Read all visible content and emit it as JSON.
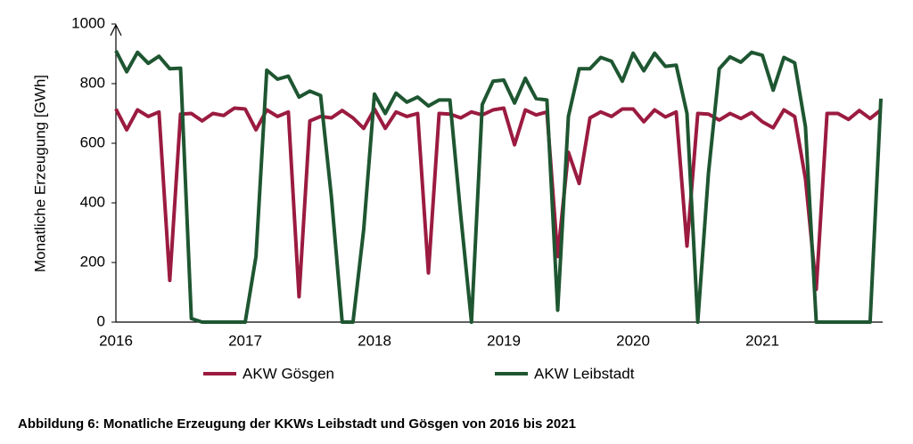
{
  "chart_data": {
    "type": "line",
    "caption": "Abbildung 6: Monatliche Erzeugung der KKWs Leibstadt und Gösgen von 2016 bis 2021",
    "y_label": "Monatliche Erzeugung [GWh]",
    "categories": [
      "2016",
      null,
      null,
      null,
      null,
      null,
      null,
      null,
      null,
      null,
      null,
      null,
      "2017",
      null,
      null,
      null,
      null,
      null,
      null,
      null,
      null,
      null,
      null,
      null,
      "2018",
      null,
      null,
      null,
      null,
      null,
      null,
      null,
      null,
      null,
      null,
      null,
      "2019",
      null,
      null,
      null,
      null,
      null,
      null,
      null,
      null,
      null,
      null,
      null,
      "2020",
      null,
      null,
      null,
      null,
      null,
      null,
      null,
      null,
      null,
      null,
      null,
      "2021",
      null,
      null,
      null,
      null,
      null,
      null,
      null,
      null,
      null,
      null,
      null
    ],
    "series": [
      {
        "name": "AKW Gösgen",
        "color": "#9b1b40",
        "values": [
          715,
          645,
          712,
          690,
          705,
          140,
          698,
          700,
          675,
          700,
          693,
          718,
          715,
          645,
          712,
          690,
          705,
          85,
          675,
          690,
          685,
          710,
          685,
          650,
          715,
          650,
          705,
          690,
          700,
          165,
          700,
          698,
          685,
          705,
          695,
          712,
          718,
          595,
          712,
          695,
          705,
          220,
          570,
          465,
          685,
          705,
          690,
          715,
          715,
          672,
          712,
          688,
          705,
          255,
          700,
          698,
          678,
          700,
          683,
          703,
          672,
          652,
          712,
          690,
          480,
          110,
          700,
          700,
          680,
          710,
          683,
          712
        ]
      },
      {
        "name": "AKW Leibstadt",
        "color": "#1e5631",
        "values": [
          910,
          840,
          905,
          868,
          892,
          850,
          852,
          12,
          0,
          0,
          0,
          0,
          0,
          220,
          845,
          815,
          825,
          755,
          775,
          760,
          420,
          0,
          0,
          310,
          765,
          700,
          768,
          738,
          755,
          725,
          745,
          745,
          360,
          0,
          730,
          808,
          812,
          735,
          818,
          750,
          745,
          40,
          690,
          850,
          850,
          888,
          875,
          808,
          902,
          843,
          902,
          858,
          862,
          700,
          0,
          500,
          850,
          890,
          872,
          905,
          895,
          778,
          888,
          870,
          655,
          0,
          0,
          0,
          0,
          0,
          0,
          750
        ]
      }
    ],
    "ylim": [
      0,
      1000
    ],
    "yticks": [
      0,
      200,
      400,
      600,
      800,
      1000
    ],
    "grid": false
  }
}
